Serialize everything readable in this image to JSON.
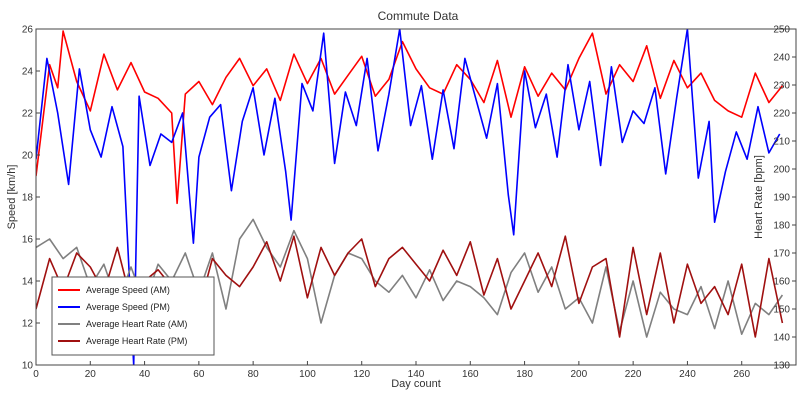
{
  "chart_data": {
    "type": "line",
    "title": "Commute Data",
    "xlabel": "Day count",
    "ylabel": "Speed [km/h]",
    "y2label": "Heart Rate [bpm]",
    "xlim": [
      0,
      280
    ],
    "ylim": [
      10,
      26
    ],
    "y2lim": [
      130,
      250
    ],
    "x_ticks": [
      0,
      20,
      40,
      60,
      80,
      100,
      120,
      140,
      160,
      180,
      200,
      220,
      240,
      260
    ],
    "y_ticks": [
      10,
      12,
      14,
      16,
      18,
      20,
      22,
      24,
      26
    ],
    "y2_ticks": [
      130,
      140,
      150,
      160,
      170,
      180,
      190,
      200,
      210,
      220,
      230,
      240,
      250
    ],
    "grid": false,
    "legend_position": "bottom-left",
    "series": [
      {
        "name": "Average Speed (AM)",
        "axis": "left",
        "color": "#ff0000",
        "x": [
          0,
          5,
          8,
          10,
          15,
          20,
          25,
          30,
          35,
          40,
          45,
          50,
          52,
          55,
          60,
          65,
          70,
          75,
          80,
          85,
          90,
          95,
          100,
          105,
          110,
          115,
          120,
          125,
          130,
          135,
          140,
          145,
          150,
          155,
          160,
          165,
          170,
          175,
          180,
          185,
          190,
          195,
          200,
          205,
          210,
          215,
          220,
          225,
          230,
          235,
          240,
          245,
          250,
          255,
          260,
          265,
          270,
          275
        ],
        "values": [
          19.0,
          24.3,
          23.2,
          25.9,
          23.5,
          22.1,
          24.8,
          23.1,
          24.4,
          23.0,
          22.7,
          22.0,
          17.7,
          22.9,
          23.5,
          22.4,
          23.7,
          24.6,
          23.3,
          24.1,
          22.6,
          24.8,
          23.4,
          24.6,
          22.9,
          23.8,
          24.7,
          22.8,
          23.6,
          25.4,
          24.1,
          23.2,
          22.9,
          24.3,
          23.6,
          22.5,
          24.5,
          21.8,
          24.2,
          22.8,
          23.9,
          23.1,
          24.6,
          25.8,
          22.9,
          24.3,
          23.5,
          25.2,
          22.7,
          24.5,
          23.2,
          23.9,
          22.6,
          22.1,
          21.8,
          23.9,
          22.5,
          23.3
        ]
      },
      {
        "name": "Average Speed (PM)",
        "axis": "left",
        "color": "#0000ff",
        "x": [
          0,
          4,
          8,
          12,
          16,
          20,
          24,
          28,
          32,
          36,
          38,
          42,
          46,
          50,
          54,
          58,
          60,
          64,
          68,
          72,
          76,
          80,
          84,
          88,
          92,
          94,
          98,
          102,
          106,
          110,
          114,
          118,
          122,
          126,
          130,
          134,
          138,
          142,
          146,
          150,
          154,
          158,
          162,
          166,
          170,
          174,
          176,
          180,
          184,
          188,
          192,
          196,
          200,
          204,
          208,
          212,
          216,
          220,
          224,
          228,
          232,
          236,
          240,
          244,
          248,
          250,
          254,
          258,
          262,
          266,
          270,
          274
        ],
        "values": [
          19.8,
          24.6,
          22.0,
          18.6,
          24.1,
          21.2,
          19.9,
          22.3,
          20.4,
          10.0,
          22.8,
          19.5,
          21.0,
          20.6,
          22.0,
          15.8,
          19.9,
          21.8,
          22.4,
          18.3,
          21.6,
          23.2,
          20.0,
          22.7,
          19.2,
          16.9,
          23.4,
          22.1,
          25.8,
          19.6,
          23.0,
          21.4,
          24.6,
          20.2,
          22.9,
          26.0,
          21.4,
          23.3,
          19.8,
          23.1,
          20.3,
          24.6,
          22.7,
          20.8,
          23.4,
          18.1,
          16.2,
          24.0,
          21.3,
          22.9,
          19.9,
          24.3,
          21.2,
          23.5,
          19.5,
          24.2,
          20.6,
          22.1,
          21.5,
          23.2,
          19.1,
          22.7,
          26.0,
          18.9,
          21.6,
          16.8,
          19.2,
          21.1,
          19.8,
          22.3,
          20.1,
          21.0
        ]
      },
      {
        "name": "Average Heart Rate (AM)",
        "axis": "right",
        "color": "#808080",
        "x": [
          0,
          5,
          10,
          15,
          20,
          25,
          30,
          35,
          40,
          45,
          50,
          55,
          60,
          65,
          70,
          75,
          80,
          85,
          90,
          95,
          100,
          105,
          110,
          115,
          120,
          125,
          130,
          135,
          140,
          145,
          150,
          155,
          160,
          165,
          170,
          175,
          180,
          185,
          190,
          195,
          200,
          205,
          210,
          215,
          220,
          225,
          230,
          235,
          240,
          245,
          250,
          255,
          260,
          265,
          270,
          275
        ],
        "values": [
          172,
          175,
          168,
          172,
          158,
          166,
          152,
          165,
          152,
          166,
          160,
          170,
          156,
          170,
          150,
          175,
          182,
          172,
          165,
          178,
          168,
          145,
          162,
          170,
          168,
          160,
          156,
          162,
          154,
          164,
          153,
          160,
          158,
          154,
          148,
          163,
          170,
          156,
          165,
          150,
          154,
          145,
          165,
          142,
          160,
          140,
          156,
          150,
          148,
          158,
          143,
          160,
          141,
          152,
          148,
          155
        ]
      },
      {
        "name": "Average Heart Rate (PM)",
        "axis": "right",
        "color": "#a01010",
        "x": [
          0,
          5,
          10,
          15,
          20,
          25,
          30,
          35,
          40,
          45,
          50,
          55,
          60,
          65,
          70,
          75,
          80,
          85,
          90,
          95,
          100,
          105,
          110,
          115,
          120,
          125,
          130,
          135,
          140,
          145,
          150,
          155,
          160,
          165,
          170,
          175,
          180,
          185,
          190,
          195,
          200,
          205,
          210,
          215,
          220,
          225,
          230,
          235,
          240,
          245,
          250,
          255,
          260,
          265,
          270,
          275
        ],
        "values": [
          150,
          168,
          157,
          170,
          165,
          156,
          172,
          153,
          160,
          164,
          158,
          152,
          150,
          168,
          162,
          158,
          165,
          174,
          160,
          176,
          154,
          172,
          162,
          170,
          175,
          158,
          168,
          172,
          166,
          160,
          171,
          162,
          174,
          155,
          168,
          150,
          160,
          170,
          158,
          176,
          152,
          165,
          168,
          140,
          172,
          148,
          170,
          145,
          166,
          152,
          158,
          148,
          166,
          140,
          168,
          145
        ]
      }
    ]
  }
}
